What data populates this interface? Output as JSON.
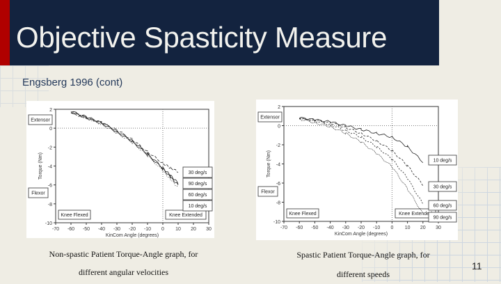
{
  "slide": {
    "title": "Objective Spasticity Measure",
    "subtitle": "Engsberg 1996 (cont)",
    "page_number": "11",
    "colors": {
      "title_bar": "#13233f",
      "accent_stripe": "#b00000",
      "background": "#efede4",
      "subtitle_text": "#24395a"
    }
  },
  "captions": {
    "left_line1": "Non-spastic Patient Torque-Angle graph, for",
    "left_line2": "different angular velocities",
    "right_line1": "Spastic Patient Torque-Angle graph, for",
    "right_line2": "different speeds"
  },
  "chart_data": [
    {
      "type": "line",
      "title": "Non-spastic Patient Torque-Angle graph, for different angular velocities",
      "xlabel": "KinCom Angle (degrees)",
      "ylabel": "Torque (Nm)",
      "xlim": [
        -70,
        30
      ],
      "ylim": [
        -10,
        2
      ],
      "x_ticks": [
        "-70",
        "-60",
        "-50",
        "-40",
        "-30",
        "-20",
        "-10",
        "0",
        "10",
        "20",
        "30"
      ],
      "y_ticks": [
        "2",
        "0",
        "-2",
        "-4",
        "-6",
        "-8",
        "-10"
      ],
      "annotations": [
        "Extensor",
        "Flexor",
        "Knee Flexed",
        "Knee Extended"
      ],
      "legend": [
        "30 deg/s",
        "90 deg/s",
        "60 deg/s",
        "10 deg/s"
      ],
      "x": [
        -60,
        -50,
        -40,
        -30,
        -20,
        -10,
        0,
        5,
        10
      ],
      "series": [
        {
          "name": "30 deg/s",
          "values": [
            1.6,
            1.1,
            0.6,
            -0.2,
            -1.2,
            -2.5,
            -3.7,
            -4.2,
            -4.6
          ]
        },
        {
          "name": "90 deg/s",
          "values": [
            1.8,
            1.2,
            0.6,
            -0.3,
            -1.3,
            -2.7,
            -4.2,
            -5.0,
            -5.8
          ]
        },
        {
          "name": "60 deg/s",
          "values": [
            1.7,
            1.1,
            0.5,
            -0.4,
            -1.4,
            -2.8,
            -4.3,
            -5.2,
            -6.0
          ]
        },
        {
          "name": "10 deg/s",
          "values": [
            1.7,
            1.1,
            0.4,
            -0.5,
            -1.5,
            -2.9,
            -4.5,
            -5.4,
            -6.3
          ]
        }
      ],
      "vertical_reference": 0,
      "horizontal_reference": 0
    },
    {
      "type": "line",
      "title": "Spastic Patient Torque-Angle graph, for different speeds",
      "xlabel": "KinCom Angle (degrees)",
      "ylabel": "Torque (Nm)",
      "xlim": [
        -70,
        30
      ],
      "ylim": [
        -10,
        2
      ],
      "x_ticks": [
        "-70",
        "-60",
        "-50",
        "-40",
        "-30",
        "-20",
        "-10",
        "0",
        "10",
        "20",
        "30"
      ],
      "y_ticks": [
        "2",
        "0",
        "-2",
        "-4",
        "-6",
        "-8",
        "-10"
      ],
      "annotations": [
        "Extensor",
        "Flexor",
        "Knee Flexed",
        "Knee Extended"
      ],
      "legend": [
        "10 deg/s",
        "30 deg/s",
        "60 deg/s",
        "90 deg/s"
      ],
      "x": [
        -60,
        -50,
        -40,
        -30,
        -20,
        -10,
        0,
        10,
        20
      ],
      "series": [
        {
          "name": "10 deg/s",
          "values": [
            0.8,
            0.6,
            0.4,
            0.0,
            -0.4,
            -0.8,
            -1.2,
            -2.2,
            -3.8
          ]
        },
        {
          "name": "30 deg/s",
          "values": [
            0.8,
            0.6,
            0.3,
            -0.2,
            -0.8,
            -1.6,
            -2.6,
            -4.2,
            -6.2
          ]
        },
        {
          "name": "60 deg/s",
          "values": [
            0.8,
            0.5,
            0.1,
            -0.5,
            -1.2,
            -2.2,
            -3.5,
            -5.5,
            -8.2
          ]
        },
        {
          "name": "90 deg/s",
          "values": [
            0.7,
            0.3,
            -0.1,
            -0.8,
            -1.7,
            -2.9,
            -4.3,
            -6.6,
            -9.2
          ]
        }
      ],
      "vertical_reference": 0,
      "horizontal_reference": 0
    }
  ]
}
